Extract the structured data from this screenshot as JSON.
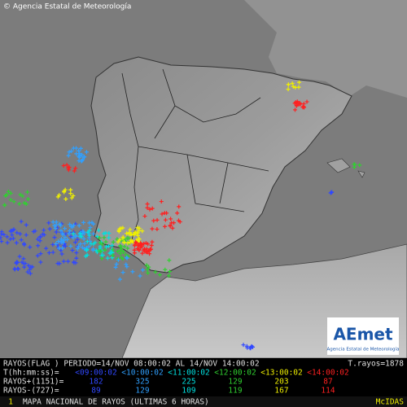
{
  "header": {
    "credit": "© Agencia Estatal de Meteorología"
  },
  "logo": {
    "name": "AEmet",
    "subtitle": "Agencia Estatal de Meteorología"
  },
  "legend": {
    "period": "RAYOS(FLAG ) PERIODO=14/NOV 08:00:02 AL 14/NOV 14:00:02",
    "total": "T.rayos=1878",
    "time_label": "T(hh:mm:ss)=",
    "positive_label": "RAYOS+(1151)=",
    "negative_label": "RAYOS-(727)=",
    "intervals": [
      {
        "label": "<09:00:02",
        "color": "#3048ff",
        "positive": 182,
        "negative": 89
      },
      {
        "label": "<10:00:02",
        "color": "#30a0ff",
        "positive": 325,
        "negative": 129
      },
      {
        "label": "<11:00:02",
        "color": "#00e0e0",
        "positive": 225,
        "negative": 109
      },
      {
        "label": "<12:00:02",
        "color": "#30d030",
        "positive": 129,
        "negative": 119
      },
      {
        "label": "<13:00:02",
        "color": "#f0f000",
        "positive": 203,
        "negative": 167
      },
      {
        "label": "<14:00:02",
        "color": "#ff2020",
        "positive": 87,
        "negative": 114
      }
    ]
  },
  "footer": {
    "page": "1",
    "title": "MAPA NACIONAL DE RAYOS (ULTIMAS 6 HORAS)",
    "system": "McIDAS"
  }
}
